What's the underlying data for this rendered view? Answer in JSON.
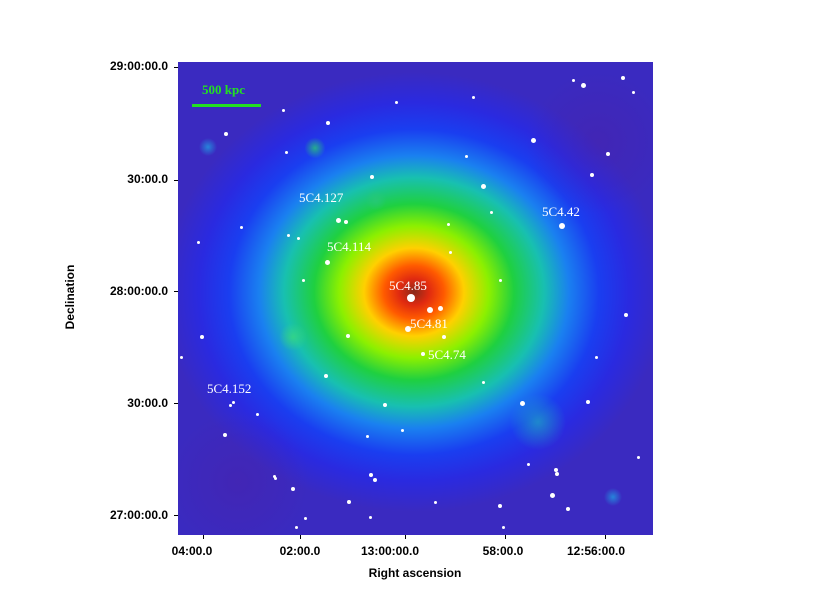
{
  "image": {
    "scale_bar_label": "500 kpc",
    "source_labels": [
      "5C4.127",
      "5C4.42",
      "5C4.114",
      "5C4.85",
      "5C4.81",
      "5C4.74",
      "5C4.152"
    ],
    "y_axis": {
      "title": "Declination",
      "ticks": [
        "29:00:00.0",
        "30:00.0",
        "28:00:00.0",
        "30:00.0",
        "27:00:00.0"
      ]
    },
    "x_axis": {
      "title": "Right ascension",
      "ticks": [
        "04:00.0",
        "02:00.0",
        "13:00:00.0",
        "58:00.0",
        "12:56:00.0"
      ]
    },
    "colors": {
      "scale_bar": "#22e022",
      "background_low": "#2a2ae0",
      "peak": "#e02a10"
    }
  }
}
